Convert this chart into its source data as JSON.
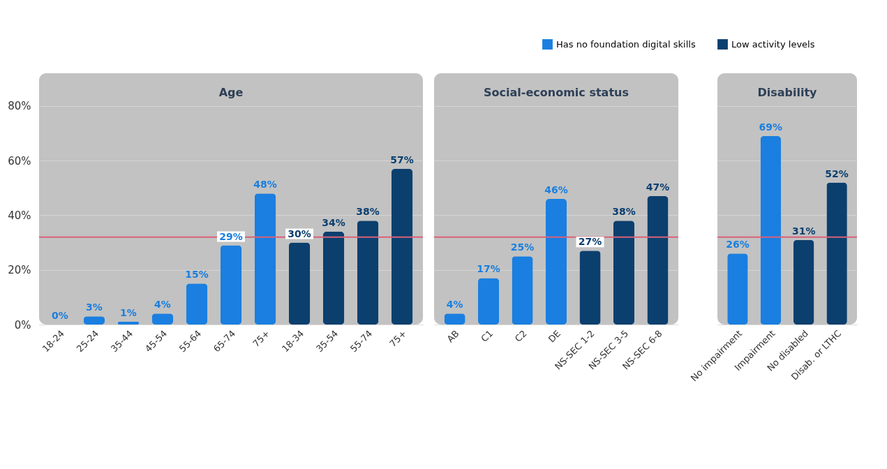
{
  "chart_data": [
    {
      "type": "bar",
      "title": "Age",
      "categories": [
        "18-24",
        "25-24",
        "35-44",
        "45-54",
        "55-64",
        "65-74",
        "75+",
        "18-34",
        "35-54",
        "55-74",
        "75+"
      ],
      "series": [
        {
          "name": "Has no foundation digital skills",
          "color": "#1a7fe0",
          "values": [
            0,
            3,
            1,
            4,
            15,
            29,
            48,
            null,
            null,
            null,
            null
          ],
          "value_labels": [
            "0%",
            "3%",
            "1%",
            "4%",
            "15%",
            "29%",
            "48%",
            null,
            null,
            null,
            null
          ]
        },
        {
          "name": "Low activity levels",
          "color": "#0b3f6e",
          "values": [
            null,
            null,
            null,
            null,
            null,
            null,
            null,
            30,
            34,
            38,
            57
          ],
          "value_labels": [
            null,
            null,
            null,
            null,
            null,
            null,
            null,
            "30%",
            "34%",
            "38%",
            "57%"
          ]
        }
      ],
      "ylim": [
        0,
        92
      ],
      "yticks": [
        {
          "value": 0,
          "label": "0%"
        },
        {
          "value": 20,
          "label": "20%"
        },
        {
          "value": 40,
          "label": "40%"
        },
        {
          "value": 60,
          "label": "60%"
        },
        {
          "value": 80,
          "label": "80%"
        }
      ],
      "ref_lines": [
        {
          "axis": "y",
          "value": 32,
          "color": "#d9607a"
        }
      ],
      "grid": "y",
      "legend": "top right"
    },
    {
      "type": "bar",
      "title": "Social-economic status",
      "categories": [
        "AB",
        "C1",
        "C2",
        "DE",
        "NS-SEC 1-2",
        "NS-SEC 3-5",
        "NS-SEC 6-8"
      ],
      "series": [
        {
          "name": "Has no foundation digital skills",
          "color": "#1a7fe0",
          "values": [
            4,
            17,
            25,
            46,
            null,
            null,
            null
          ],
          "value_labels": [
            "4%",
            "17%",
            "25%",
            "46%",
            null,
            null,
            null
          ]
        },
        {
          "name": "Low activity levels",
          "color": "#0b3f6e",
          "values": [
            null,
            null,
            null,
            null,
            27,
            38,
            47
          ],
          "value_labels": [
            null,
            null,
            null,
            null,
            "27%",
            "38%",
            "47%"
          ]
        }
      ],
      "ylim": [
        0,
        92
      ],
      "tick_labels": "x",
      "ref_lines": [
        {
          "axis": "y",
          "value": 32,
          "color": "#d9607a"
        }
      ],
      "grid": "y"
    },
    {
      "type": "bar",
      "title": "Disability",
      "categories": [
        "No impairment",
        "Impairment",
        "No disabled",
        "Disab. or LTHC"
      ],
      "series": [
        {
          "name": "Has no foundation digital skills",
          "color": "#1a7fe0",
          "values": [
            26,
            69,
            null,
            null
          ],
          "value_labels": [
            "26%",
            "69%",
            null,
            null
          ]
        },
        {
          "name": "Low activity levels",
          "color": "#0b3f6e",
          "values": [
            null,
            null,
            31,
            52
          ],
          "value_labels": [
            null,
            null,
            "31%",
            "52%"
          ]
        }
      ],
      "ylim": [
        0,
        92
      ],
      "tick_labels": "x",
      "ref_lines": [
        {
          "axis": "y",
          "value": 32,
          "color": "#d9607a"
        }
      ],
      "grid": "y"
    }
  ]
}
